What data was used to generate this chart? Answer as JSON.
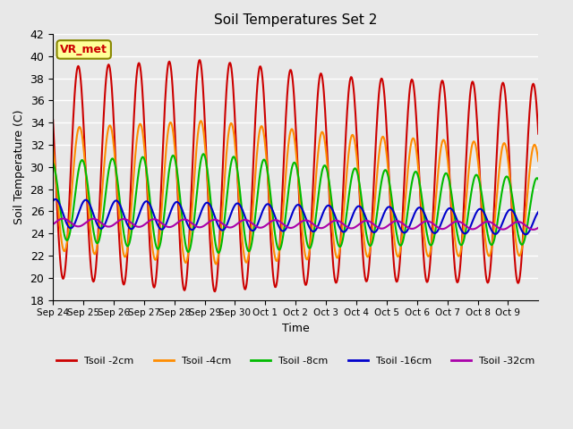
{
  "title": "Soil Temperatures Set 2",
  "xlabel": "Time",
  "ylabel": "Soil Temperature (C)",
  "ylim": [
    18,
    42
  ],
  "yticks": [
    18,
    20,
    22,
    24,
    26,
    28,
    30,
    32,
    34,
    36,
    38,
    40,
    42
  ],
  "background_color": "#e8e8e8",
  "plot_bg_color": "#e8e8e8",
  "grid_color": "#ffffff",
  "series": {
    "Tsoil -2cm": {
      "color": "#cc0000",
      "lw": 1.5
    },
    "Tsoil -4cm": {
      "color": "#ff8c00",
      "lw": 1.5
    },
    "Tsoil -8cm": {
      "color": "#00bb00",
      "lw": 1.5
    },
    "Tsoil -16cm": {
      "color": "#0000cc",
      "lw": 1.5
    },
    "Tsoil -32cm": {
      "color": "#aa00aa",
      "lw": 1.5
    }
  },
  "xtick_labels": [
    "Sep 24",
    "Sep 25",
    "Sep 26",
    "Sep 27",
    "Sep 28",
    "Sep 29",
    "Sep 30",
    "Oct 1",
    "Oct 2",
    "Oct 3",
    "Oct 4",
    "Oct 5",
    "Oct 6",
    "Oct 7",
    "Oct 8",
    "Oct 9"
  ],
  "annotation_text": "VR_met",
  "annotation_color": "#cc0000",
  "annotation_bg": "#ffff99",
  "annotation_border": "#888800",
  "n_days": 16,
  "samples_per_day": 48
}
